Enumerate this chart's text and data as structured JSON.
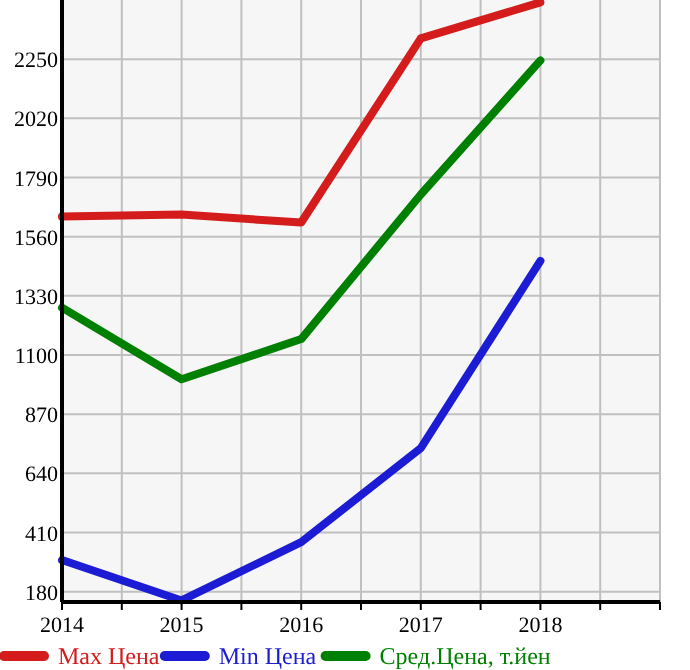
{
  "chart_data": {
    "type": "line",
    "x": [
      2014,
      2015,
      2016,
      2017,
      2018
    ],
    "series": [
      {
        "name": "Max Цена",
        "color": "#d41c1c",
        "values": [
          1638,
          1646,
          1615,
          2331,
          2471
        ]
      },
      {
        "name": "Min Цена",
        "color": "#1c1cd4",
        "values": [
          303,
          146,
          373,
          738,
          1466
        ]
      },
      {
        "name": "Сред.Цена, т.йен",
        "color": "#008000",
        "values": [
          1284,
          1006,
          1162,
          1724,
          2245
        ]
      }
    ],
    "xlim": [
      2014,
      2019
    ],
    "xticks": [
      2014,
      {
        "value": 2014.5,
        "label": null
      },
      2015,
      {
        "value": 2015.5,
        "label": null
      },
      2016,
      {
        "value": 2016.5,
        "label": null
      },
      2017,
      {
        "value": 2017.5,
        "label": null
      },
      2018,
      {
        "value": 2018.5,
        "label": null
      },
      {
        "value": 2019,
        "label": null
      }
    ],
    "ylim": [
      140,
      2480
    ],
    "yticks": [
      180,
      410,
      640,
      870,
      1100,
      1330,
      1560,
      1790,
      2020,
      2250
    ],
    "grid": true,
    "legend": "bottom",
    "marker": "none",
    "line_style": "solid"
  }
}
